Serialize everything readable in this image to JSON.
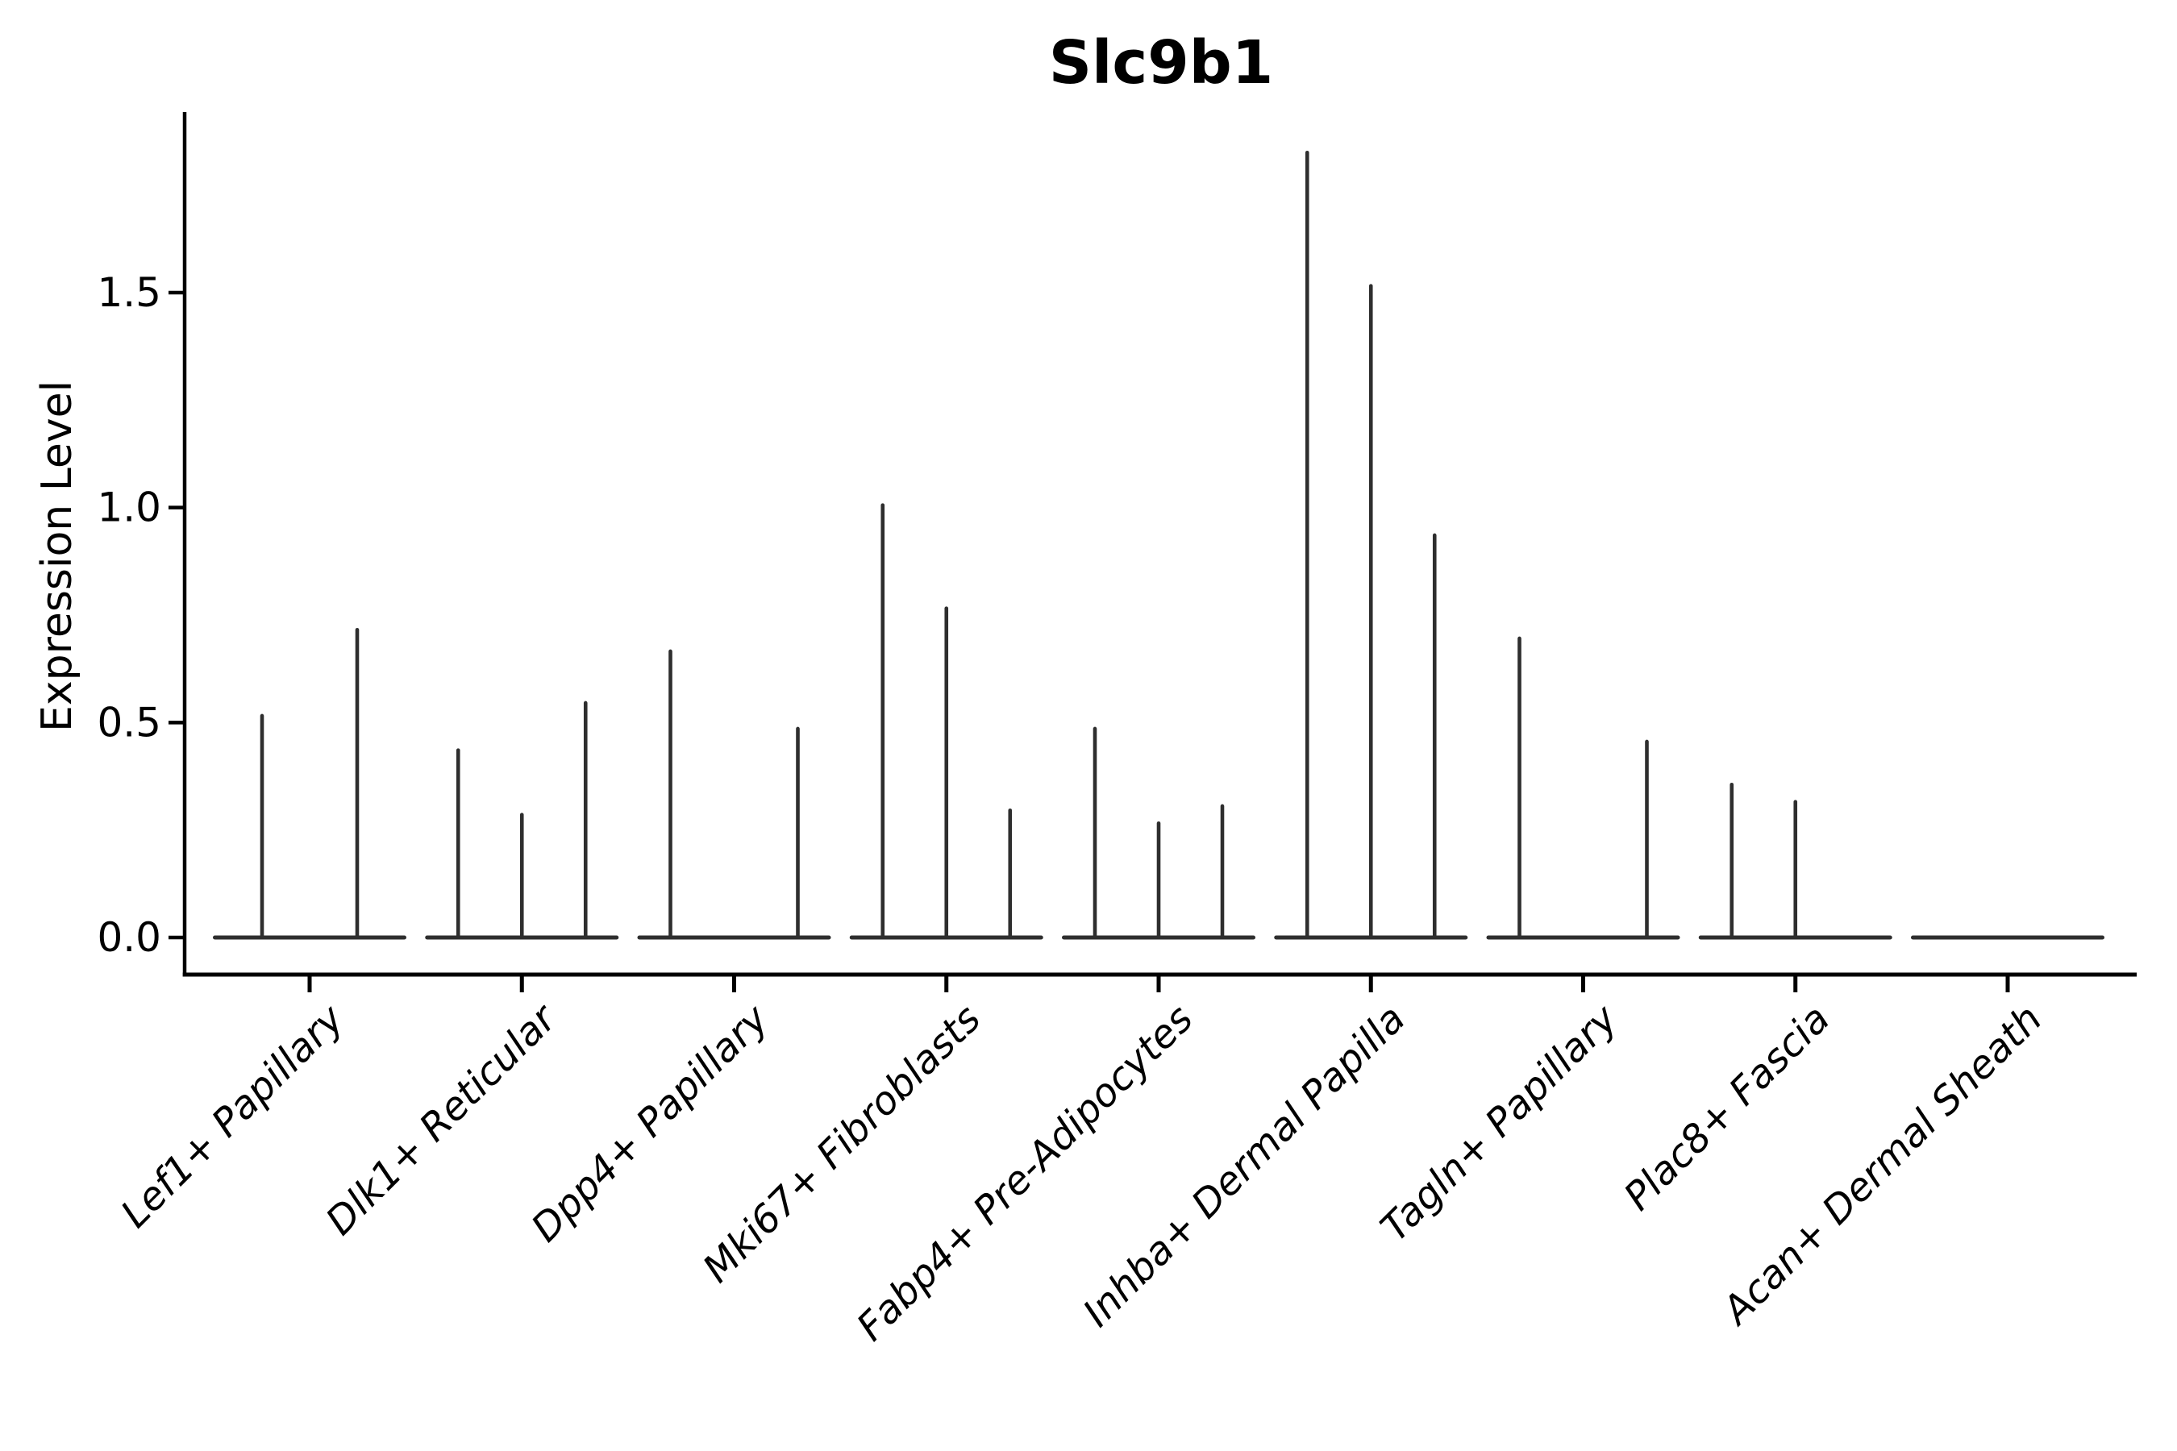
{
  "chart_data": {
    "type": "violin",
    "title": "Slc9b1",
    "ylabel": "Expression Level",
    "xlabel": "",
    "yticks": [
      0.0,
      0.5,
      1.0,
      1.5
    ],
    "ytick_labels": [
      "0.0",
      "0.5",
      "1.0",
      "1.5"
    ],
    "ylim": [
      -0.086,
      1.916
    ],
    "grid": false,
    "legend": "none",
    "categories": [
      "Lef1+ Papillary",
      "Dlk1+ Reticular",
      "Dpp4+ Papillary",
      "Mki67+ Fibroblasts",
      "Fabp4+ Pre-Adipocytes",
      "Inhba+ Dermal Papilla",
      "Tagln+ Papillary",
      "Plac8+ Fascia",
      "Acan+ Dermal Sheath"
    ],
    "violins": [
      {
        "category": "Lef1+ Papillary",
        "spikes": [
          {
            "dx": -59,
            "max": 0.52
          },
          {
            "dx": 59,
            "max": 0.72
          }
        ]
      },
      {
        "category": "Dlk1+ Reticular",
        "spikes": [
          {
            "dx": -79,
            "max": 0.44
          },
          {
            "dx": 0,
            "max": 0.29
          },
          {
            "dx": 79,
            "max": 0.55
          }
        ]
      },
      {
        "category": "Dpp4+ Papillary",
        "spikes": [
          {
            "dx": -79,
            "max": 0.67
          },
          {
            "dx": 79,
            "max": 0.49
          }
        ]
      },
      {
        "category": "Mki67+ Fibroblasts",
        "spikes": [
          {
            "dx": -79,
            "max": 1.01
          },
          {
            "dx": 0,
            "max": 0.77
          },
          {
            "dx": 79,
            "max": 0.3
          }
        ]
      },
      {
        "category": "Fabp4+ Pre-Adipocytes",
        "spikes": [
          {
            "dx": -79,
            "max": 0.49
          },
          {
            "dx": 0,
            "max": 0.27
          },
          {
            "dx": 79,
            "max": 0.31
          }
        ]
      },
      {
        "category": "Inhba+ Dermal Papilla",
        "spikes": [
          {
            "dx": -79,
            "max": 1.83
          },
          {
            "dx": 0,
            "max": 1.52
          },
          {
            "dx": 79,
            "max": 0.94
          }
        ]
      },
      {
        "category": "Tagln+ Papillary",
        "spikes": [
          {
            "dx": -79,
            "max": 0.7
          },
          {
            "dx": 79,
            "max": 0.46
          }
        ]
      },
      {
        "category": "Plac8+ Fascia",
        "spikes": [
          {
            "dx": -79,
            "max": 0.36
          },
          {
            "dx": 0,
            "max": 0.32
          }
        ]
      },
      {
        "category": "Acan+ Dermal Sheath",
        "spikes": []
      }
    ]
  },
  "colors": {
    "background": "#ffffff",
    "axis": "#000000",
    "text": "#000000",
    "violin_line": "#2e2e2e"
  }
}
